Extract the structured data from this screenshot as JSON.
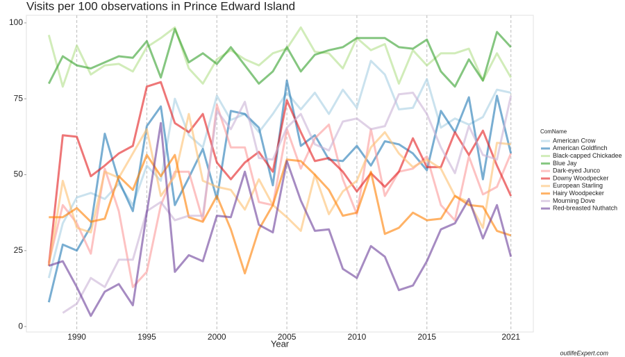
{
  "chart_data": {
    "type": "line",
    "title": "Visits per 100 observations in Prince Edward Island",
    "x_label": "Year",
    "legend_title": "ComName",
    "watermark": "outlifeExpert.com",
    "x": [
      1988,
      1989,
      1990,
      1991,
      1992,
      1993,
      1994,
      1995,
      1996,
      1997,
      1998,
      1999,
      2000,
      2001,
      2002,
      2003,
      2004,
      2005,
      2006,
      2007,
      2008,
      2009,
      2010,
      2011,
      2012,
      2013,
      2014,
      2015,
      2016,
      2017,
      2018,
      2019,
      2020,
      2021
    ],
    "xlim": [
      1986.4,
      2022.6
    ],
    "xticks": [
      1990,
      1995,
      2000,
      2005,
      2010,
      2015,
      2021
    ],
    "ylim": [
      -1.8,
      102.5
    ],
    "yticks": [
      0,
      25,
      50,
      75,
      100
    ],
    "grid": true,
    "legend": "right",
    "series": [
      {
        "name": "American Crow",
        "color": "#a6cee3",
        "values": [
          16,
          34,
          42.5,
          44,
          42,
          47,
          40,
          53,
          48,
          75,
          63,
          59,
          76,
          68,
          70,
          64,
          70,
          77,
          71.5,
          77,
          70,
          78,
          72,
          87.5,
          83,
          71.5,
          72,
          81.5,
          65.5,
          68.5,
          66.5,
          69,
          78,
          77
        ]
      },
      {
        "name": "American Goldfinch",
        "color": "#1f78b4",
        "values": [
          8,
          27,
          25,
          33,
          63.5,
          48,
          38,
          66,
          72.5,
          40,
          49,
          58.5,
          42,
          71,
          70,
          65.5,
          46.5,
          81,
          59.5,
          63,
          55,
          54.5,
          59.5,
          53,
          61,
          60,
          57,
          51.5,
          71,
          64,
          75.5,
          48.5,
          76,
          57
        ]
      },
      {
        "name": "Black-capped Chickadee",
        "color": "#b2df8a",
        "values": [
          96,
          79,
          92.5,
          83,
          86,
          86.5,
          84,
          92,
          95,
          98.5,
          85,
          80,
          88,
          91,
          88,
          86,
          90,
          91.5,
          98.5,
          90.5,
          90,
          85,
          95,
          91,
          93,
          80,
          91,
          86,
          90,
          90,
          91.5,
          81,
          90,
          82
        ]
      },
      {
        "name": "Blue Jay",
        "color": "#33a02c",
        "values": [
          80,
          89,
          86,
          85,
          87,
          89,
          88.5,
          94,
          82,
          98,
          87,
          90,
          86.5,
          92,
          86,
          80,
          84,
          92,
          84,
          89.5,
          91,
          92,
          95,
          95,
          95,
          92,
          91.5,
          94.5,
          84,
          79,
          88,
          81,
          97,
          92
        ]
      },
      {
        "name": "Dark-eyed Junco",
        "color": "#fb9a99",
        "values": [
          21,
          40,
          34,
          24,
          52,
          38,
          13,
          18,
          40,
          51,
          51,
          35,
          73,
          59,
          59,
          41,
          40,
          65,
          52,
          62,
          66.5,
          48.5,
          37,
          65,
          43,
          51,
          52,
          56,
          40,
          35,
          56,
          43.5,
          46,
          57
        ]
      },
      {
        "name": "Downy Woodpecker",
        "color": "#e31a1c",
        "values": [
          20,
          63,
          62.5,
          49.5,
          53,
          57,
          59.5,
          79,
          80.5,
          67,
          64,
          70,
          54,
          48.5,
          54,
          57.5,
          51,
          74.5,
          64,
          54.5,
          55.5,
          51,
          44.5,
          50.5,
          46,
          51,
          62,
          52.5,
          52.5,
          64,
          56.5,
          64.5,
          53,
          43
        ]
      },
      {
        "name": "European Starling",
        "color": "#fdbf6f",
        "values": [
          20,
          48,
          32.5,
          31,
          51,
          49,
          57,
          65,
          43,
          49.5,
          70,
          48,
          46,
          45,
          38.5,
          48.5,
          40,
          36,
          31.5,
          50,
          37,
          44.5,
          48,
          59,
          64,
          57,
          52.5,
          55,
          52,
          43,
          41,
          32.5,
          60.5,
          60
        ]
      },
      {
        "name": "Hairy Woodpecker",
        "color": "#ff7f00",
        "values": [
          36,
          36,
          39,
          34.5,
          35.5,
          49.5,
          45,
          56.5,
          49.5,
          56.5,
          36,
          34.5,
          43,
          32,
          17.5,
          32,
          40,
          55,
          54.5,
          50,
          45,
          36.5,
          37.5,
          51,
          30.5,
          32.5,
          37.5,
          35,
          35.5,
          43,
          40,
          39.5,
          31.5,
          30
        ]
      },
      {
        "name": "Mourning Dove",
        "color": "#cab2d6",
        "values": [
          null,
          4.5,
          7.5,
          16,
          13,
          22,
          22,
          38,
          41,
          35,
          36.5,
          36.5,
          71,
          65,
          74,
          55.5,
          55,
          65.5,
          70,
          60,
          58,
          67.5,
          68.5,
          65,
          66,
          76.5,
          77,
          70,
          59,
          50.5,
          66,
          56.5,
          55,
          76
        ]
      },
      {
        "name": "Red-breasted Nuthatch",
        "color": "#6a3d9a",
        "values": [
          20,
          21.5,
          13,
          3.5,
          11.5,
          14,
          7,
          37.5,
          67,
          18,
          23.5,
          21.5,
          36.5,
          36,
          51,
          33.5,
          31,
          54.5,
          41.5,
          31.5,
          32,
          19,
          16,
          26.5,
          23,
          12,
          13.5,
          21.5,
          32,
          34,
          42,
          29,
          40,
          23
        ]
      }
    ]
  }
}
